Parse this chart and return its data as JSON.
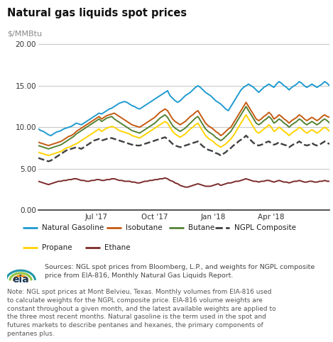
{
  "title": "Natural gas liquids spot prices",
  "ylabel": "$/MMBtu",
  "ylim": [
    0,
    21
  ],
  "yticks": [
    0.0,
    5.0,
    10.0,
    15.0,
    20.0
  ],
  "background_color": "#ffffff",
  "plot_bg_color": "#ffffff",
  "grid_color": "#c8c8c8",
  "series": {
    "Natural Gasoline": {
      "color": "#1f9bcf",
      "lw": 1.4,
      "linestyle": "-",
      "data": [
        9.8,
        9.6,
        9.5,
        9.3,
        9.1,
        9.0,
        9.2,
        9.4,
        9.5,
        9.6,
        9.8,
        9.9,
        10.0,
        10.1,
        10.3,
        10.5,
        10.4,
        10.3,
        10.5,
        10.7,
        10.9,
        11.1,
        11.3,
        11.5,
        11.7,
        11.6,
        11.8,
        12.0,
        12.2,
        12.3,
        12.5,
        12.7,
        12.9,
        13.0,
        13.1,
        13.0,
        12.8,
        12.6,
        12.5,
        12.3,
        12.2,
        12.4,
        12.6,
        12.8,
        13.0,
        13.2,
        13.4,
        13.6,
        13.8,
        14.0,
        14.2,
        14.4,
        13.8,
        13.5,
        13.2,
        13.0,
        13.2,
        13.5,
        13.8,
        14.0,
        14.2,
        14.5,
        14.8,
        15.0,
        14.8,
        14.5,
        14.2,
        14.0,
        13.8,
        13.5,
        13.2,
        13.0,
        12.8,
        12.5,
        12.2,
        12.0,
        12.5,
        13.0,
        13.5,
        14.0,
        14.5,
        14.8,
        15.0,
        15.2,
        15.0,
        14.8,
        14.5,
        14.2,
        14.5,
        14.8,
        15.0,
        15.2,
        15.0,
        14.8,
        15.2,
        15.5,
        15.3,
        15.0,
        14.8,
        14.5,
        14.8,
        15.0,
        15.2,
        15.5,
        15.3,
        15.0,
        14.8,
        15.0,
        15.2,
        15.0,
        14.8,
        15.0,
        15.2,
        15.5,
        15.3,
        15.0
      ]
    },
    "Isobutane": {
      "color": "#c55a11",
      "lw": 1.4,
      "linestyle": "-",
      "data": [
        8.2,
        8.1,
        8.0,
        7.9,
        7.8,
        7.9,
        8.0,
        8.1,
        8.2,
        8.3,
        8.5,
        8.7,
        8.9,
        9.0,
        9.2,
        9.5,
        9.7,
        9.9,
        10.1,
        10.3,
        10.5,
        10.7,
        10.9,
        11.1,
        11.3,
        11.0,
        11.2,
        11.4,
        11.5,
        11.6,
        11.7,
        11.5,
        11.3,
        11.1,
        10.9,
        10.7,
        10.5,
        10.3,
        10.2,
        10.1,
        10.0,
        10.2,
        10.4,
        10.6,
        10.8,
        11.0,
        11.2,
        11.5,
        11.8,
        12.0,
        12.2,
        12.0,
        11.5,
        11.0,
        10.7,
        10.5,
        10.3,
        10.5,
        10.7,
        11.0,
        11.3,
        11.5,
        11.8,
        12.0,
        11.5,
        11.0,
        10.5,
        10.2,
        10.0,
        9.8,
        9.5,
        9.3,
        9.0,
        9.2,
        9.5,
        9.8,
        10.0,
        10.5,
        11.0,
        11.5,
        12.0,
        12.5,
        13.0,
        12.5,
        12.0,
        11.5,
        11.0,
        10.8,
        11.0,
        11.3,
        11.5,
        11.8,
        11.5,
        11.0,
        11.2,
        11.5,
        11.3,
        11.0,
        10.8,
        10.5,
        10.8,
        11.0,
        11.2,
        11.5,
        11.3,
        11.0,
        10.8,
        11.0,
        11.2,
        11.0,
        10.8,
        11.0,
        11.3,
        11.5,
        11.3,
        11.2
      ]
    },
    "Butane": {
      "color": "#548235",
      "lw": 1.4,
      "linestyle": "-",
      "data": [
        7.8,
        7.7,
        7.6,
        7.5,
        7.4,
        7.5,
        7.6,
        7.7,
        7.8,
        7.9,
        8.1,
        8.3,
        8.5,
        8.7,
        8.9,
        9.2,
        9.4,
        9.6,
        9.8,
        10.0,
        10.2,
        10.4,
        10.6,
        10.8,
        11.0,
        10.7,
        10.9,
        11.1,
        11.2,
        11.3,
        11.0,
        10.8,
        10.6,
        10.4,
        10.2,
        10.0,
        9.8,
        9.6,
        9.5,
        9.4,
        9.3,
        9.5,
        9.7,
        9.9,
        10.1,
        10.3,
        10.5,
        10.8,
        11.1,
        11.3,
        11.5,
        11.2,
        10.7,
        10.2,
        9.9,
        9.7,
        9.5,
        9.7,
        9.9,
        10.2,
        10.5,
        10.8,
        11.1,
        11.3,
        10.8,
        10.3,
        9.8,
        9.5,
        9.3,
        9.1,
        8.8,
        8.6,
        8.4,
        8.6,
        8.9,
        9.2,
        9.5,
        10.0,
        10.5,
        11.0,
        11.5,
        12.0,
        12.5,
        12.0,
        11.5,
        11.0,
        10.5,
        10.3,
        10.5,
        10.8,
        11.0,
        11.3,
        11.0,
        10.5,
        10.7,
        11.0,
        10.8,
        10.5,
        10.3,
        10.0,
        10.3,
        10.5,
        10.7,
        11.0,
        10.8,
        10.5,
        10.3,
        10.5,
        10.7,
        10.5,
        10.3,
        10.5,
        10.8,
        11.0,
        10.8,
        10.5
      ]
    },
    "NGPL Composite": {
      "color": "#404040",
      "lw": 1.7,
      "linestyle": "--",
      "data": [
        6.3,
        6.2,
        6.1,
        6.0,
        5.9,
        6.0,
        6.2,
        6.4,
        6.6,
        6.8,
        7.0,
        7.2,
        7.3,
        7.4,
        7.5,
        7.6,
        7.5,
        7.4,
        7.6,
        7.8,
        8.0,
        8.2,
        8.4,
        8.5,
        8.6,
        8.4,
        8.5,
        8.6,
        8.7,
        8.7,
        8.6,
        8.5,
        8.4,
        8.3,
        8.2,
        8.1,
        8.0,
        7.9,
        7.9,
        7.8,
        7.8,
        7.9,
        8.0,
        8.1,
        8.2,
        8.3,
        8.4,
        8.5,
        8.6,
        8.7,
        8.8,
        8.6,
        8.3,
        8.0,
        7.8,
        7.7,
        7.6,
        7.7,
        7.8,
        7.9,
        8.0,
        8.1,
        8.2,
        8.3,
        8.0,
        7.7,
        7.5,
        7.3,
        7.2,
        7.1,
        6.9,
        6.8,
        6.6,
        6.8,
        7.0,
        7.3,
        7.5,
        7.8,
        8.0,
        8.3,
        8.5,
        8.7,
        9.0,
        8.7,
        8.4,
        8.1,
        7.9,
        7.8,
        7.9,
        8.0,
        8.2,
        8.3,
        8.1,
        7.9,
        8.0,
        8.2,
        8.0,
        7.9,
        7.8,
        7.6,
        7.8,
        8.0,
        8.1,
        8.3,
        8.1,
        7.9,
        7.8,
        7.9,
        8.1,
        7.9,
        7.8,
        7.9,
        8.1,
        8.3,
        8.1,
        8.0
      ]
    },
    "Propane": {
      "color": "#ffd300",
      "lw": 1.4,
      "linestyle": "-",
      "data": [
        7.0,
        6.9,
        6.8,
        6.7,
        6.6,
        6.7,
        6.8,
        6.9,
        7.0,
        7.1,
        7.3,
        7.5,
        7.6,
        7.7,
        7.9,
        8.0,
        8.2,
        8.4,
        8.6,
        8.8,
        9.0,
        9.2,
        9.4,
        9.6,
        9.8,
        9.5,
        9.7,
        9.9,
        10.0,
        10.1,
        10.0,
        9.8,
        9.6,
        9.5,
        9.4,
        9.3,
        9.2,
        9.0,
        8.9,
        8.8,
        8.7,
        8.9,
        9.1,
        9.3,
        9.5,
        9.7,
        9.9,
        10.1,
        10.3,
        10.5,
        10.7,
        10.5,
        10.0,
        9.5,
        9.2,
        9.0,
        8.8,
        9.0,
        9.2,
        9.5,
        9.8,
        10.0,
        10.3,
        10.5,
        10.0,
        9.5,
        9.0,
        8.7,
        8.5,
        8.3,
        8.0,
        7.8,
        7.6,
        7.8,
        8.0,
        8.3,
        8.6,
        9.0,
        9.5,
        10.0,
        10.5,
        11.0,
        11.5,
        11.0,
        10.5,
        10.0,
        9.5,
        9.3,
        9.5,
        9.8,
        10.0,
        10.3,
        10.0,
        9.5,
        9.7,
        10.0,
        9.8,
        9.5,
        9.3,
        9.0,
        9.3,
        9.5,
        9.7,
        10.0,
        9.8,
        9.5,
        9.3,
        9.5,
        9.7,
        9.5,
        9.3,
        9.5,
        9.8,
        10.0,
        9.8,
        9.5
      ]
    },
    "Ethane": {
      "color": "#7b2929",
      "lw": 1.4,
      "linestyle": "-",
      "data": [
        3.5,
        3.4,
        3.3,
        3.2,
        3.1,
        3.2,
        3.3,
        3.4,
        3.5,
        3.5,
        3.6,
        3.6,
        3.7,
        3.7,
        3.8,
        3.8,
        3.7,
        3.6,
        3.6,
        3.5,
        3.5,
        3.6,
        3.6,
        3.7,
        3.7,
        3.6,
        3.6,
        3.7,
        3.7,
        3.8,
        3.8,
        3.7,
        3.6,
        3.6,
        3.5,
        3.5,
        3.5,
        3.4,
        3.4,
        3.3,
        3.3,
        3.4,
        3.5,
        3.5,
        3.6,
        3.6,
        3.7,
        3.7,
        3.8,
        3.8,
        3.9,
        3.8,
        3.6,
        3.5,
        3.3,
        3.2,
        3.0,
        2.9,
        2.8,
        2.8,
        2.9,
        3.0,
        3.1,
        3.2,
        3.1,
        3.0,
        2.9,
        2.9,
        2.9,
        3.0,
        3.1,
        3.2,
        3.0,
        3.1,
        3.2,
        3.3,
        3.3,
        3.4,
        3.5,
        3.5,
        3.6,
        3.7,
        3.8,
        3.7,
        3.6,
        3.5,
        3.5,
        3.4,
        3.5,
        3.5,
        3.6,
        3.6,
        3.5,
        3.4,
        3.5,
        3.6,
        3.5,
        3.4,
        3.4,
        3.3,
        3.4,
        3.5,
        3.5,
        3.6,
        3.5,
        3.4,
        3.4,
        3.5,
        3.5,
        3.4,
        3.4,
        3.5,
        3.5,
        3.6,
        3.5,
        3.5
      ]
    }
  },
  "xtick_positions": [
    0,
    23,
    46,
    69,
    92,
    115
  ],
  "xtick_labels": [
    "",
    "Jul '17",
    "Oct '17",
    "Jan '18",
    "Apr '18",
    ""
  ],
  "legend_row1": [
    "Natural Gasoline",
    "Isobutane",
    "Butane",
    "NGPL Composite"
  ],
  "legend_row2": [
    "Propane",
    "Ethane"
  ],
  "source_text": "Sources: NGL spot prices from Bloomberg, L.P., and weights for NGPL composite\nprice from EIA-816, Monthly Natural Gas Liquids Report.",
  "note_text": "Note: NGL spot prices at Mont Belvieu, Texas. Monthly volumes from EIA-816 used\nto calculate weights for the NGPL composite price. EIA-816 volume weights are\nconstant throughout a given month, and the latest available weights are applied to\nthe three most recent months. Natural gasoline is the term used in the spot and\nfutures markets to describe pentanes and hexanes, the primary components of\npentanes plus."
}
